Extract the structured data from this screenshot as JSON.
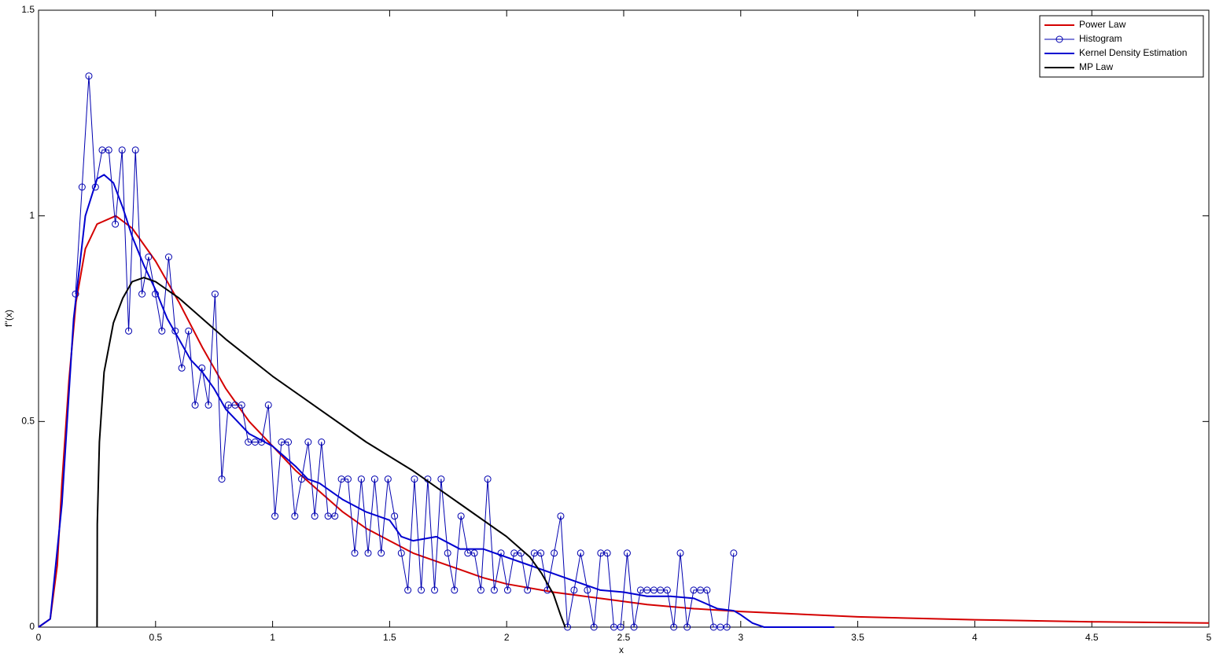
{
  "chart_data": {
    "type": "line",
    "xlabel": "x",
    "ylabel": "f''(x)",
    "xlim": [
      0,
      5
    ],
    "ylim": [
      0,
      1.5
    ],
    "xticks": [
      0,
      0.5,
      1,
      1.5,
      2,
      2.5,
      3,
      3.5,
      4,
      4.5,
      5
    ],
    "yticks": [
      0,
      0.5,
      1,
      1.5
    ],
    "legend": "upper right",
    "series": [
      {
        "name": "Power Law",
        "color": "#d40000",
        "width": 2,
        "x": [
          0,
          0.05,
          0.08,
          0.1,
          0.13,
          0.16,
          0.2,
          0.25,
          0.33,
          0.4,
          0.5,
          0.6,
          0.7,
          0.8,
          0.9,
          1.0,
          1.1,
          1.2,
          1.3,
          1.4,
          1.5,
          1.6,
          1.7,
          1.8,
          1.9,
          2.0,
          2.2,
          2.4,
          2.6,
          2.8,
          3.0,
          3.5,
          4,
          4.5,
          5
        ],
        "values": [
          0,
          0.02,
          0.15,
          0.35,
          0.6,
          0.79,
          0.92,
          0.98,
          1.0,
          0.97,
          0.89,
          0.79,
          0.68,
          0.58,
          0.5,
          0.44,
          0.38,
          0.33,
          0.28,
          0.24,
          0.21,
          0.18,
          0.16,
          0.14,
          0.12,
          0.105,
          0.085,
          0.07,
          0.055,
          0.045,
          0.038,
          0.025,
          0.018,
          0.013,
          0.01
        ]
      },
      {
        "name": "Histogram",
        "color": "#0000b0",
        "width": 1,
        "marker": "o",
        "x": [
          0.158,
          0.186,
          0.215,
          0.243,
          0.272,
          0.3,
          0.328,
          0.357,
          0.385,
          0.414,
          0.442,
          0.47,
          0.499,
          0.527,
          0.556,
          0.584,
          0.612,
          0.641,
          0.669,
          0.698,
          0.726,
          0.754,
          0.783,
          0.811,
          0.84,
          0.868,
          0.896,
          0.925,
          0.953,
          0.982,
          1.01,
          1.038,
          1.067,
          1.095,
          1.124,
          1.152,
          1.18,
          1.209,
          1.237,
          1.266,
          1.294,
          1.322,
          1.351,
          1.379,
          1.408,
          1.436,
          1.464,
          1.493,
          1.521,
          1.55,
          1.578,
          1.606,
          1.635,
          1.663,
          1.692,
          1.72,
          1.748,
          1.777,
          1.805,
          1.834,
          1.862,
          1.89,
          1.919,
          1.947,
          1.976,
          2.004,
          2.032,
          2.061,
          2.089,
          2.118,
          2.146,
          2.174,
          2.203,
          2.231,
          2.26,
          2.288,
          2.316,
          2.345,
          2.373,
          2.402,
          2.43,
          2.458,
          2.487,
          2.515,
          2.544,
          2.572,
          2.6,
          2.629,
          2.657,
          2.686,
          2.714,
          2.742,
          2.771,
          2.799,
          2.828,
          2.856,
          2.884,
          2.913,
          2.941,
          2.97
        ],
        "values": [
          0.81,
          1.07,
          1.34,
          1.07,
          1.16,
          1.16,
          0.98,
          1.16,
          0.72,
          1.16,
          0.81,
          0.9,
          0.81,
          0.72,
          0.9,
          0.72,
          0.63,
          0.72,
          0.54,
          0.63,
          0.54,
          0.81,
          0.36,
          0.54,
          0.54,
          0.54,
          0.45,
          0.45,
          0.45,
          0.54,
          0.27,
          0.45,
          0.45,
          0.27,
          0.36,
          0.45,
          0.27,
          0.45,
          0.27,
          0.27,
          0.36,
          0.36,
          0.18,
          0.36,
          0.18,
          0.36,
          0.18,
          0.36,
          0.27,
          0.18,
          0.09,
          0.36,
          0.09,
          0.36,
          0.09,
          0.36,
          0.18,
          0.09,
          0.27,
          0.18,
          0.18,
          0.09,
          0.36,
          0.09,
          0.18,
          0.09,
          0.18,
          0.18,
          0.09,
          0.18,
          0.18,
          0.09,
          0.18,
          0.27,
          0,
          0.09,
          0.18,
          0.09,
          0,
          0.18,
          0.18,
          0,
          0,
          0.18,
          0,
          0.09,
          0.09,
          0.09,
          0.09,
          0.09,
          0,
          0.18,
          0,
          0.09,
          0.09,
          0.09,
          0,
          0,
          0,
          0.18
        ]
      },
      {
        "name": "Kernel Density Estimation",
        "color": "#0000d0",
        "width": 2,
        "x": [
          0,
          0.05,
          0.1,
          0.15,
          0.2,
          0.25,
          0.28,
          0.32,
          0.36,
          0.4,
          0.45,
          0.5,
          0.55,
          0.6,
          0.65,
          0.7,
          0.75,
          0.8,
          0.85,
          0.9,
          1.0,
          1.1,
          1.15,
          1.2,
          1.3,
          1.4,
          1.5,
          1.55,
          1.6,
          1.7,
          1.8,
          1.9,
          2.0,
          2.1,
          2.2,
          2.3,
          2.4,
          2.5,
          2.6,
          2.7,
          2.8,
          2.9,
          2.97,
          3.0,
          3.05,
          3.1,
          3.4
        ],
        "values": [
          0,
          0.02,
          0.3,
          0.75,
          1.0,
          1.09,
          1.1,
          1.08,
          1.02,
          0.95,
          0.88,
          0.82,
          0.75,
          0.7,
          0.65,
          0.62,
          0.58,
          0.53,
          0.5,
          0.47,
          0.44,
          0.39,
          0.36,
          0.35,
          0.31,
          0.28,
          0.26,
          0.22,
          0.21,
          0.22,
          0.19,
          0.19,
          0.17,
          0.15,
          0.13,
          0.11,
          0.09,
          0.085,
          0.075,
          0.075,
          0.07,
          0.045,
          0.04,
          0.03,
          0.01,
          0,
          0
        ]
      },
      {
        "name": "MP Law",
        "color": "#000000",
        "width": 2,
        "x": [
          0.25,
          0.251,
          0.26,
          0.28,
          0.32,
          0.36,
          0.4,
          0.45,
          0.5,
          0.6,
          0.7,
          0.8,
          1.0,
          1.2,
          1.4,
          1.6,
          1.8,
          2.0,
          2.1,
          2.15,
          2.2,
          2.23,
          2.25
        ],
        "values": [
          0,
          0.25,
          0.45,
          0.62,
          0.74,
          0.8,
          0.84,
          0.85,
          0.84,
          0.8,
          0.75,
          0.7,
          0.61,
          0.53,
          0.45,
          0.38,
          0.3,
          0.22,
          0.17,
          0.13,
          0.08,
          0.03,
          0
        ]
      }
    ]
  }
}
